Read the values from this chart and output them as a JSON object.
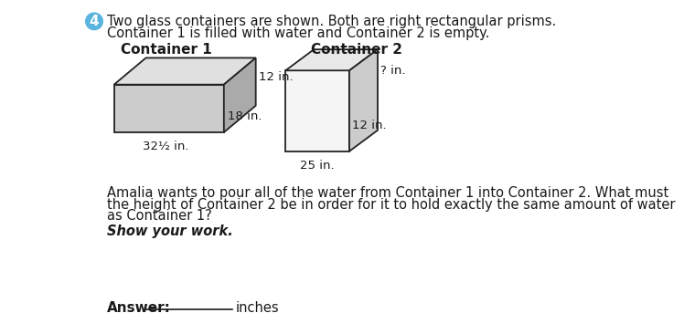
{
  "background_color": "#ffffff",
  "question_number": "4",
  "question_number_bg": "#5ab4e0",
  "title_line1": "Two glass containers are shown. Both are right rectangular prisms.",
  "title_line2": "Container 1 is filled with water and Container 2 is empty.",
  "container1_label": "Container 1",
  "container2_label": "Container 2",
  "c1_dim_height": "12 in.",
  "c1_dim_depth": "18 in.",
  "c1_dim_width": "32½ in.",
  "c2_dim_height": "? in.",
  "c2_dim_depth": "12 in.",
  "c2_dim_width": "25 in.",
  "body_text_lines": [
    "Amalia wants to pour all of the water from Container 1 into Container 2. What must",
    "the height of Container 2 be in order for it to hold exactly the same amount of water",
    "as Container 1?"
  ],
  "show_work_text": "Show your work.",
  "answer_label": "Answer:",
  "answer_units": "inches",
  "c1_front_color": "#cccccc",
  "c1_top_color": "#e0e0e0",
  "c1_side_color": "#aaaaaa",
  "c2_front_color": "#f5f5f5",
  "c2_top_color": "#e8e8e8",
  "c2_side_color": "#cccccc",
  "edge_color": "#222222",
  "text_color": "#1a1a1a"
}
